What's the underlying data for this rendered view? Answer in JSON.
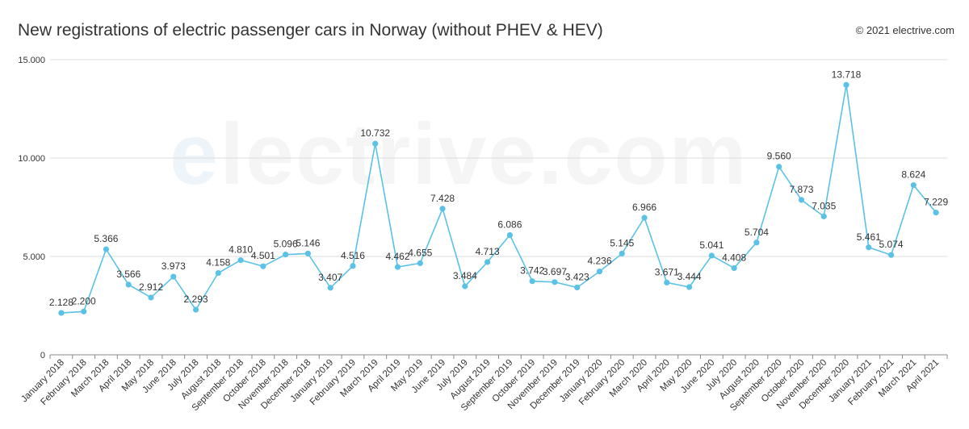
{
  "header": {
    "title": "New registrations of electric passenger cars in Norway (without PHEV & HEV)",
    "copyright": "© 2021 electrive.com"
  },
  "watermark": {
    "first_letter": "e",
    "rest": "lectrive.com"
  },
  "colors": {
    "series": "#5bc2e7",
    "grid": "#dddddd",
    "axis": "#888888",
    "text": "#333333"
  },
  "chart_data": {
    "type": "line",
    "title": "New registrations of electric passenger cars in Norway (without PHEV & HEV)",
    "xlabel": "",
    "ylabel": "",
    "ylim": [
      0,
      15000
    ],
    "yticks": [
      {
        "value": 0,
        "label": "0"
      },
      {
        "value": 5000,
        "label": "5.000"
      },
      {
        "value": 10000,
        "label": "10.000"
      },
      {
        "value": 15000,
        "label": "15.000"
      }
    ],
    "grid": true,
    "legend": "none",
    "categories": [
      "January 2018",
      "February 2018",
      "March 2018",
      "April 2018",
      "May 2018",
      "June 2018",
      "July 2018",
      "August 2018",
      "September 2018",
      "October 2018",
      "November 2018",
      "December 2018",
      "January 2019",
      "February 2019",
      "March 2019",
      "April 2019",
      "May 2019",
      "June 2019",
      "July 2019",
      "August 2019",
      "September 2019",
      "October 2019",
      "November 2019",
      "December 2019",
      "January 2020",
      "February 2020",
      "March 2020",
      "April 2020",
      "May 2020",
      "June 2020",
      "July 2020",
      "August 2020",
      "September 2020",
      "October 2020",
      "November 2020",
      "December 2020",
      "January 2021",
      "February 2021",
      "March 2021",
      "April 2021"
    ],
    "values": [
      2128,
      2200,
      5366,
      3566,
      2912,
      3973,
      2293,
      4158,
      4810,
      4501,
      5096,
      5146,
      3407,
      4516,
      10732,
      4462,
      4655,
      7428,
      3484,
      4713,
      6086,
      3742,
      3697,
      3423,
      4236,
      5145,
      6966,
      3671,
      3444,
      5041,
      4408,
      5704,
      9560,
      7873,
      7035,
      13718,
      5461,
      5074,
      8624,
      7229
    ],
    "value_labels": [
      "2.128",
      "2.200",
      "5.366",
      "3.566",
      "2.912",
      "3.973",
      "2.293",
      "4.158",
      "4.810",
      "4.501",
      "5.096",
      "5.146",
      "3.407",
      "4.516",
      "10.732",
      "4.462",
      "4.655",
      "7.428",
      "3.484",
      "4.713",
      "6.086",
      "3.742",
      "3.697",
      "3.423",
      "4.236",
      "5.145",
      "6.966",
      "3.671",
      "3.444",
      "5.041",
      "4.408",
      "5.704",
      "9.560",
      "7.873",
      "7.035",
      "13.718",
      "5.461",
      "5.074",
      "8.624",
      "7.229"
    ]
  }
}
